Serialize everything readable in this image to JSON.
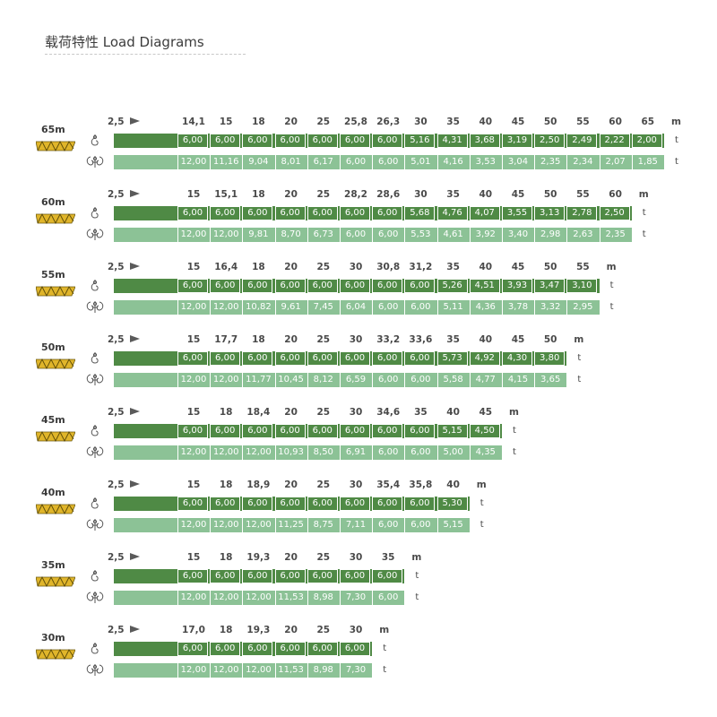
{
  "title": "载荷特性 Load Diagrams",
  "colors": {
    "dark_bar": "#4f8a45",
    "light_bar": "#8cc296",
    "jib_icon": "#e0b52a"
  },
  "icons": {
    "single_hook": "single-fall-hook-icon",
    "double_hook": "double-fall-hook-icon",
    "jib": "jib-lattice-icon"
  },
  "start_radius": "2,5",
  "radius_unit": "m",
  "load_unit": "t",
  "diagrams": [
    {
      "jib": "65m",
      "radii": [
        "14,1",
        "15",
        "18",
        "20",
        "25",
        "25,8",
        "26,3",
        "30",
        "35",
        "40",
        "45",
        "50",
        "55",
        "60",
        "65"
      ],
      "single": [
        "6,00",
        "6,00",
        "6,00",
        "6,00",
        "6,00",
        "6,00",
        "6,00",
        "5,16",
        "4,31",
        "3,68",
        "3,19",
        "2,50",
        "2,49",
        "2,22",
        "2,00"
      ],
      "double": [
        "12,00",
        "11,16",
        "9,04",
        "8,01",
        "6,17",
        "6,00",
        "6,00",
        "5,01",
        "4,16",
        "3,53",
        "3,04",
        "2,35",
        "2,34",
        "2,07",
        "1,85"
      ]
    },
    {
      "jib": "60m",
      "radii": [
        "15",
        "15,1",
        "18",
        "20",
        "25",
        "28,2",
        "28,6",
        "30",
        "35",
        "40",
        "45",
        "50",
        "55",
        "60"
      ],
      "single": [
        "6,00",
        "6,00",
        "6,00",
        "6,00",
        "6,00",
        "6,00",
        "6,00",
        "5,68",
        "4,76",
        "4,07",
        "3,55",
        "3,13",
        "2,78",
        "2,50"
      ],
      "double": [
        "12,00",
        "12,00",
        "9,81",
        "8,70",
        "6,73",
        "6,00",
        "6,00",
        "5,53",
        "4,61",
        "3,92",
        "3,40",
        "2,98",
        "2,63",
        "2,35"
      ]
    },
    {
      "jib": "55m",
      "radii": [
        "15",
        "16,4",
        "18",
        "20",
        "25",
        "30",
        "30,8",
        "31,2",
        "35",
        "40",
        "45",
        "50",
        "55"
      ],
      "single": [
        "6,00",
        "6,00",
        "6,00",
        "6,00",
        "6,00",
        "6,00",
        "6,00",
        "6,00",
        "5,26",
        "4,51",
        "3,93",
        "3,47",
        "3,10"
      ],
      "double": [
        "12,00",
        "12,00",
        "10,82",
        "9,61",
        "7,45",
        "6,04",
        "6,00",
        "6,00",
        "5,11",
        "4,36",
        "3,78",
        "3,32",
        "2,95"
      ]
    },
    {
      "jib": "50m",
      "radii": [
        "15",
        "17,7",
        "18",
        "20",
        "25",
        "30",
        "33,2",
        "33,6",
        "35",
        "40",
        "45",
        "50"
      ],
      "single": [
        "6,00",
        "6,00",
        "6,00",
        "6,00",
        "6,00",
        "6,00",
        "6,00",
        "6,00",
        "5,73",
        "4,92",
        "4,30",
        "3,80"
      ],
      "double": [
        "12,00",
        "12,00",
        "11,77",
        "10,45",
        "8,12",
        "6,59",
        "6,00",
        "6,00",
        "5,58",
        "4,77",
        "4,15",
        "3,65"
      ]
    },
    {
      "jib": "45m",
      "radii": [
        "15",
        "18",
        "18,4",
        "20",
        "25",
        "30",
        "34,6",
        "35",
        "40",
        "45"
      ],
      "single": [
        "6,00",
        "6,00",
        "6,00",
        "6,00",
        "6,00",
        "6,00",
        "6,00",
        "6,00",
        "5,15",
        "4,50"
      ],
      "double": [
        "12,00",
        "12,00",
        "12,00",
        "10,93",
        "8,50",
        "6,91",
        "6,00",
        "6,00",
        "5,00",
        "4,35"
      ]
    },
    {
      "jib": "40m",
      "radii": [
        "15",
        "18",
        "18,9",
        "20",
        "25",
        "30",
        "35,4",
        "35,8",
        "40"
      ],
      "single": [
        "6,00",
        "6,00",
        "6,00",
        "6,00",
        "6,00",
        "6,00",
        "6,00",
        "6,00",
        "5,30"
      ],
      "double": [
        "12,00",
        "12,00",
        "12,00",
        "11,25",
        "8,75",
        "7,11",
        "6,00",
        "6,00",
        "5,15"
      ]
    },
    {
      "jib": "35m",
      "radii": [
        "15",
        "18",
        "19,3",
        "20",
        "25",
        "30",
        "35"
      ],
      "single": [
        "6,00",
        "6,00",
        "6,00",
        "6,00",
        "6,00",
        "6,00",
        "6,00"
      ],
      "double": [
        "12,00",
        "12,00",
        "12,00",
        "11,53",
        "8,98",
        "7,30",
        "6,00"
      ]
    },
    {
      "jib": "30m",
      "radii": [
        "17,0",
        "18",
        "19,3",
        "20",
        "25",
        "30"
      ],
      "single": [
        "6,00",
        "6,00",
        "6,00",
        "6,00",
        "6,00",
        "6,00"
      ],
      "double": [
        "12,00",
        "12,00",
        "12,00",
        "11,53",
        "8,98",
        "7,30"
      ]
    }
  ]
}
